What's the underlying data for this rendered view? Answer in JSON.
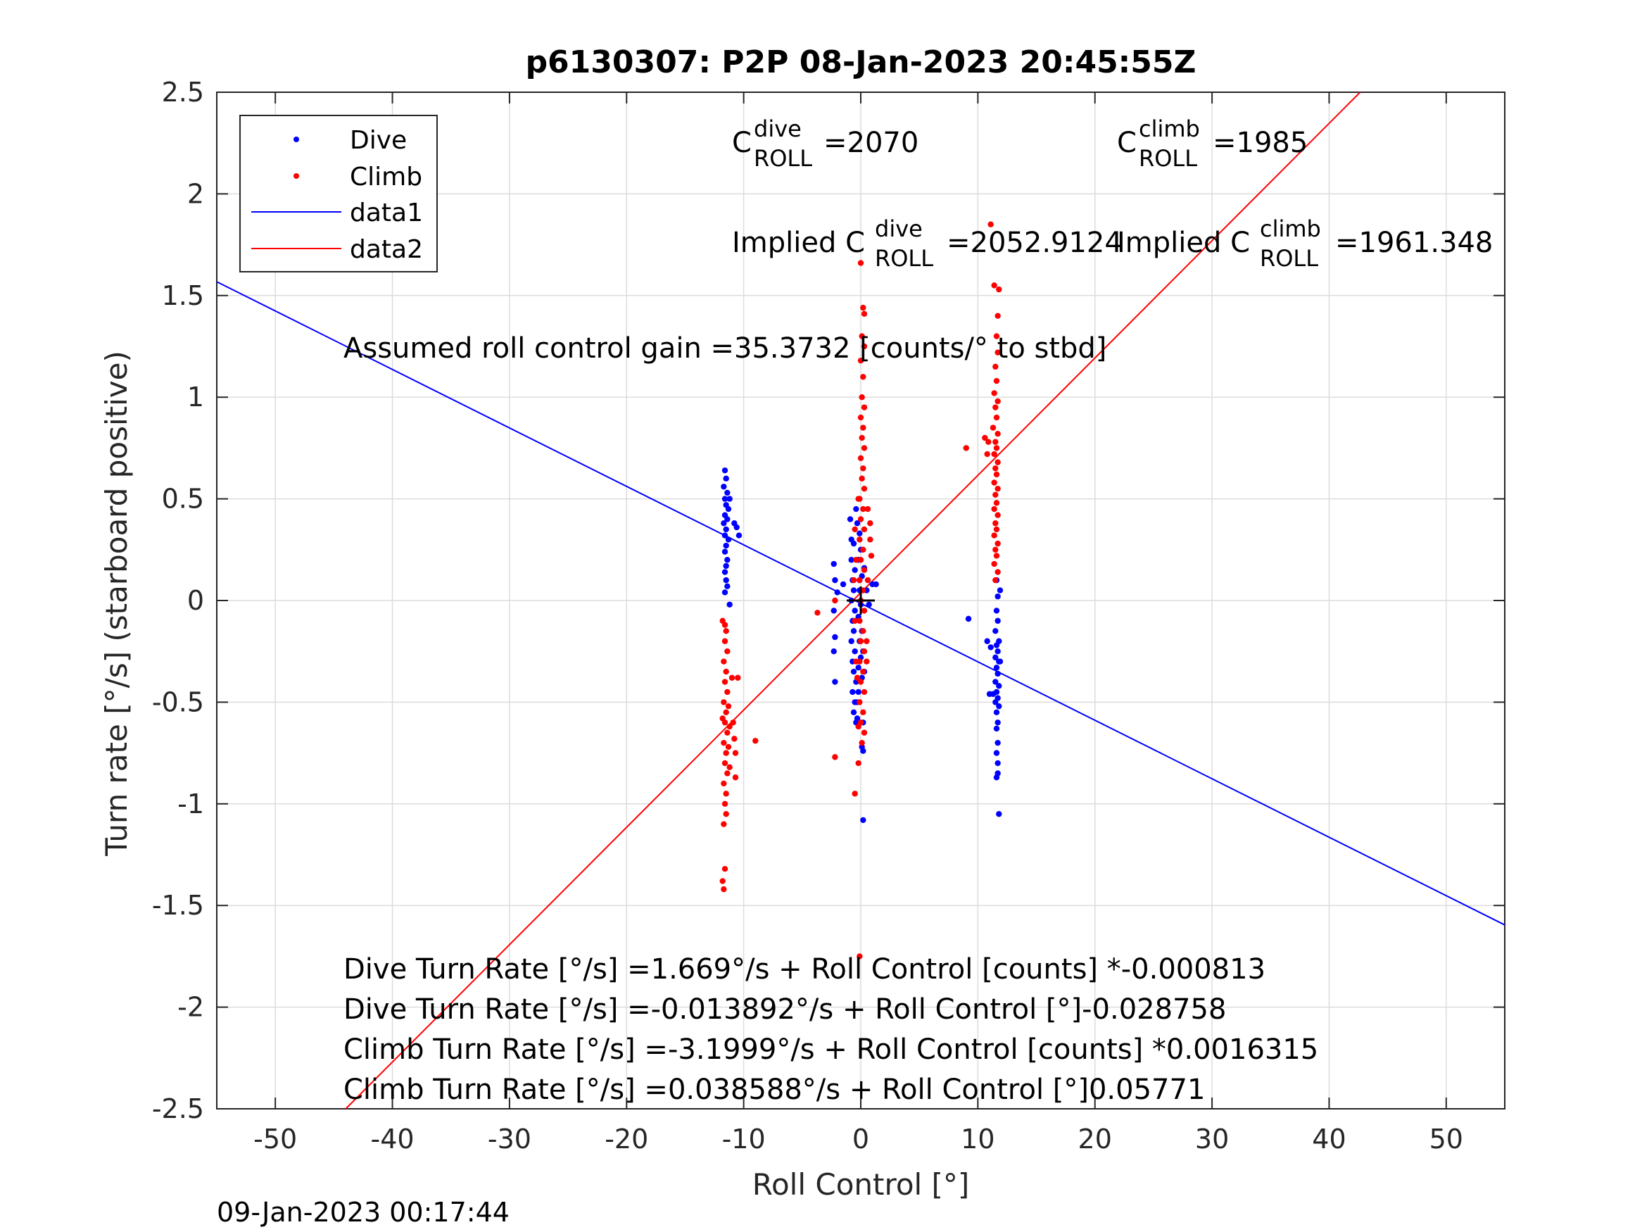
{
  "chart_data": {
    "type": "scatter",
    "title": "p6130307: P2P 08-Jan-2023 20:45:55Z",
    "xlabel": "Roll Control [°]",
    "ylabel": "Turn rate [°/s] (starboard positive)",
    "xlim": [
      -55,
      55
    ],
    "ylim": [
      -2.5,
      2.5
    ],
    "xticks": [
      -50,
      -40,
      -30,
      -20,
      -10,
      0,
      10,
      20,
      30,
      40,
      50
    ],
    "xtick_labels": [
      "-50",
      "-40",
      "-30",
      "-20",
      "-10",
      "0",
      "10",
      "20",
      "30",
      "40",
      "50"
    ],
    "yticks": [
      2.5,
      2,
      1.5,
      1,
      0.5,
      0,
      -0.5,
      -1,
      -1.5,
      -2,
      -2.5
    ],
    "ytick_labels": [
      "2.5",
      "2",
      "1.5",
      "1",
      "0.5",
      "0",
      "-0.5",
      "-1",
      "-1.5",
      "-2",
      "-2.5"
    ],
    "grid": true,
    "legend_position": "top-left",
    "legend": [
      {
        "label": "Dive",
        "kind": "marker",
        "color": "#0000ff"
      },
      {
        "label": "Climb",
        "kind": "marker",
        "color": "#ff0000"
      },
      {
        "label": "data1",
        "kind": "line",
        "color": "#0000ff"
      },
      {
        "label": "data2",
        "kind": "line",
        "color": "#ff0000"
      }
    ],
    "series": [
      {
        "name": "Dive",
        "color": "#0000ff",
        "points": [
          [
            -11.6,
            0.64
          ],
          [
            -11.5,
            0.6
          ],
          [
            -11.7,
            0.56
          ],
          [
            -11.4,
            0.53
          ],
          [
            -11.6,
            0.5
          ],
          [
            -11.5,
            0.47
          ],
          [
            -11.3,
            0.45
          ],
          [
            -11.6,
            0.42
          ],
          [
            -11.4,
            0.4
          ],
          [
            -11.7,
            0.38
          ],
          [
            -11.5,
            0.35
          ],
          [
            -11.6,
            0.32
          ],
          [
            -11.3,
            0.3
          ],
          [
            -11.5,
            0.27
          ],
          [
            -11.6,
            0.24
          ],
          [
            -11.4,
            0.2
          ],
          [
            -11.5,
            0.17
          ],
          [
            -11.6,
            0.14
          ],
          [
            -11.5,
            0.1
          ],
          [
            -11.4,
            0.07
          ],
          [
            -11.6,
            0.04
          ],
          [
            -10.8,
            0.38
          ],
          [
            -10.6,
            0.36
          ],
          [
            -10.4,
            0.32
          ],
          [
            -11.2,
            0.5
          ],
          [
            -11.2,
            -0.02
          ],
          [
            -2.3,
            0.18
          ],
          [
            -2.2,
            0.1
          ],
          [
            -2.3,
            -0.05
          ],
          [
            -2.2,
            -0.18
          ],
          [
            -2.3,
            -0.25
          ],
          [
            -2.2,
            -0.4
          ],
          [
            -2.0,
            0.04
          ],
          [
            -1.5,
            0.08
          ],
          [
            -0.9,
            0.4
          ],
          [
            -0.8,
            0.3
          ],
          [
            -0.6,
            0.28
          ],
          [
            -0.8,
            0.2
          ],
          [
            -0.5,
            0.15
          ],
          [
            -0.7,
            0.1
          ],
          [
            -0.6,
            0.05
          ],
          [
            -0.8,
            0.0
          ],
          [
            -0.5,
            -0.05
          ],
          [
            -0.7,
            -0.1
          ],
          [
            -0.6,
            -0.15
          ],
          [
            -0.8,
            -0.2
          ],
          [
            -0.5,
            -0.25
          ],
          [
            -0.7,
            -0.3
          ],
          [
            -0.6,
            -0.35
          ],
          [
            -0.4,
            -0.4
          ],
          [
            -0.7,
            -0.45
          ],
          [
            -0.5,
            -0.5
          ],
          [
            -0.6,
            -0.55
          ],
          [
            -0.4,
            -0.6
          ],
          [
            -0.3,
            -0.5
          ],
          [
            -0.2,
            -0.45
          ],
          [
            -0.4,
            0.45
          ],
          [
            -0.3,
            0.38
          ],
          [
            -0.1,
            0.33
          ],
          [
            0.0,
            0.25
          ],
          [
            -0.2,
            0.2
          ],
          [
            0.1,
            0.12
          ],
          [
            -0.1,
            0.05
          ],
          [
            0.0,
            -0.02
          ],
          [
            -0.2,
            -0.08
          ],
          [
            0.1,
            -0.15
          ],
          [
            -0.1,
            -0.2
          ],
          [
            0.0,
            -0.28
          ],
          [
            -0.2,
            -0.33
          ],
          [
            0.1,
            -0.38
          ],
          [
            -0.3,
            -0.58
          ],
          [
            0.2,
            -0.6
          ],
          [
            0.1,
            -0.72
          ],
          [
            0.2,
            -0.74
          ],
          [
            0.2,
            -1.08
          ],
          [
            0.3,
            -0.35
          ],
          [
            0.2,
            -0.25
          ],
          [
            -0.1,
            0.1
          ],
          [
            0.5,
            0.05
          ],
          [
            1.0,
            0.08
          ],
          [
            1.3,
            0.08
          ],
          [
            0.7,
            -0.02
          ],
          [
            0.3,
            0.16
          ],
          [
            9.2,
            -0.09
          ],
          [
            11.6,
            -0.05
          ],
          [
            11.7,
            -0.1
          ],
          [
            11.5,
            -0.15
          ],
          [
            11.8,
            -0.2
          ],
          [
            11.6,
            -0.22
          ],
          [
            11.7,
            -0.25
          ],
          [
            11.5,
            -0.28
          ],
          [
            11.8,
            -0.3
          ],
          [
            11.6,
            -0.33
          ],
          [
            11.7,
            -0.36
          ],
          [
            11.5,
            -0.4
          ],
          [
            11.8,
            -0.42
          ],
          [
            11.6,
            -0.45
          ],
          [
            11.7,
            -0.48
          ],
          [
            11.5,
            -0.5
          ],
          [
            11.8,
            -0.52
          ],
          [
            11.6,
            -0.55
          ],
          [
            11.7,
            -0.6
          ],
          [
            11.6,
            -0.63
          ],
          [
            11.7,
            -0.7
          ],
          [
            11.6,
            -0.75
          ],
          [
            11.7,
            -0.8
          ],
          [
            11.7,
            -0.85
          ],
          [
            11.6,
            -0.87
          ],
          [
            11.8,
            -1.05
          ],
          [
            11.6,
            0.1
          ],
          [
            11.7,
            0.02
          ],
          [
            11.9,
            0.05
          ],
          [
            10.8,
            -0.2
          ],
          [
            11.1,
            -0.23
          ],
          [
            11.0,
            -0.46
          ],
          [
            11.3,
            -0.46
          ],
          [
            11.9,
            -0.3
          ]
        ]
      },
      {
        "name": "Climb",
        "color": "#ff0000",
        "points": [
          [
            11.1,
            1.85
          ],
          [
            11.4,
            1.55
          ],
          [
            11.8,
            1.53
          ],
          [
            11.7,
            1.4
          ],
          [
            11.6,
            1.3
          ],
          [
            11.7,
            1.22
          ],
          [
            11.5,
            1.15
          ],
          [
            11.6,
            1.08
          ],
          [
            11.4,
            1.02
          ],
          [
            11.7,
            0.98
          ],
          [
            11.5,
            0.95
          ],
          [
            11.6,
            0.9
          ],
          [
            11.3,
            0.85
          ],
          [
            11.7,
            0.82
          ],
          [
            11.5,
            0.78
          ],
          [
            11.6,
            0.75
          ],
          [
            11.4,
            0.72
          ],
          [
            11.7,
            0.68
          ],
          [
            11.5,
            0.65
          ],
          [
            11.6,
            0.62
          ],
          [
            11.4,
            0.58
          ],
          [
            11.7,
            0.55
          ],
          [
            11.5,
            0.52
          ],
          [
            11.6,
            0.48
          ],
          [
            11.4,
            0.45
          ],
          [
            11.7,
            0.42
          ],
          [
            11.5,
            0.38
          ],
          [
            11.6,
            0.35
          ],
          [
            11.4,
            0.32
          ],
          [
            11.7,
            0.28
          ],
          [
            11.5,
            0.25
          ],
          [
            11.6,
            0.22
          ],
          [
            11.4,
            0.18
          ],
          [
            11.7,
            0.14
          ],
          [
            11.5,
            0.1
          ],
          [
            10.6,
            0.8
          ],
          [
            10.9,
            0.78
          ],
          [
            10.8,
            0.72
          ],
          [
            9.0,
            0.75
          ],
          [
            0.0,
            1.66
          ],
          [
            0.2,
            1.44
          ],
          [
            0.3,
            1.41
          ],
          [
            0.1,
            1.3
          ],
          [
            0.3,
            1.25
          ],
          [
            0.0,
            1.18
          ],
          [
            0.2,
            1.1
          ],
          [
            0.1,
            1.0
          ],
          [
            0.3,
            0.95
          ],
          [
            0.0,
            0.9
          ],
          [
            0.2,
            0.85
          ],
          [
            0.1,
            0.8
          ],
          [
            0.3,
            0.75
          ],
          [
            0.0,
            0.7
          ],
          [
            0.2,
            0.65
          ],
          [
            0.1,
            0.6
          ],
          [
            0.3,
            0.55
          ],
          [
            -0.1,
            0.5
          ],
          [
            0.2,
            0.45
          ],
          [
            0.0,
            0.4
          ],
          [
            0.3,
            0.35
          ],
          [
            -0.1,
            0.3
          ],
          [
            0.2,
            0.25
          ],
          [
            0.0,
            0.2
          ],
          [
            0.3,
            0.15
          ],
          [
            -0.1,
            0.1
          ],
          [
            0.2,
            0.05
          ],
          [
            0.0,
            0.0
          ],
          [
            0.3,
            -0.05
          ],
          [
            -0.1,
            -0.1
          ],
          [
            0.2,
            -0.15
          ],
          [
            0.0,
            -0.2
          ],
          [
            0.3,
            -0.25
          ],
          [
            -0.1,
            -0.3
          ],
          [
            0.2,
            -0.35
          ],
          [
            0.0,
            -0.4
          ],
          [
            0.3,
            -0.45
          ],
          [
            -0.1,
            -0.5
          ],
          [
            0.2,
            -0.55
          ],
          [
            0.0,
            -0.6
          ],
          [
            0.3,
            -0.65
          ],
          [
            0.1,
            -0.7
          ],
          [
            -0.2,
            -0.62
          ],
          [
            0.5,
            -0.2
          ],
          [
            0.6,
            0.1
          ],
          [
            0.8,
            0.3
          ],
          [
            0.8,
            0.38
          ],
          [
            0.9,
            0.22
          ],
          [
            0.6,
            0.45
          ],
          [
            -0.5,
            0.35
          ],
          [
            -0.4,
            0.2
          ],
          [
            -0.6,
            0.1
          ],
          [
            -0.5,
            -0.1
          ],
          [
            -0.4,
            -0.3
          ],
          [
            0.5,
            -0.3
          ],
          [
            -0.2,
            -0.8
          ],
          [
            -0.5,
            -0.95
          ],
          [
            -0.1,
            -1.75
          ],
          [
            -2.2,
            -0.77
          ],
          [
            -3.7,
            -0.06
          ],
          [
            -2.2,
            0.0
          ],
          [
            -0.3,
            -0.38
          ],
          [
            -0.2,
            0.5
          ],
          [
            -11.6,
            -0.12
          ],
          [
            -11.5,
            -0.15
          ],
          [
            -11.6,
            -0.2
          ],
          [
            -11.4,
            -0.25
          ],
          [
            -11.7,
            -0.3
          ],
          [
            -11.5,
            -0.35
          ],
          [
            -11.6,
            -0.4
          ],
          [
            -11.4,
            -0.45
          ],
          [
            -11.7,
            -0.5
          ],
          [
            -11.5,
            -0.55
          ],
          [
            -11.6,
            -0.6
          ],
          [
            -11.4,
            -0.65
          ],
          [
            -11.7,
            -0.7
          ],
          [
            -11.5,
            -0.75
          ],
          [
            -11.6,
            -0.8
          ],
          [
            -11.4,
            -0.85
          ],
          [
            -11.7,
            -0.9
          ],
          [
            -11.5,
            -0.95
          ],
          [
            -11.6,
            -1.0
          ],
          [
            -11.5,
            -1.05
          ],
          [
            -11.7,
            -1.1
          ],
          [
            -11.6,
            -1.32
          ],
          [
            -11.8,
            -1.38
          ],
          [
            -11.7,
            -1.42
          ],
          [
            -11.8,
            -0.1
          ],
          [
            -11.3,
            -0.52
          ],
          [
            -11.2,
            -0.62
          ],
          [
            -11.3,
            -0.72
          ],
          [
            -11.2,
            -0.82
          ],
          [
            -11.8,
            -0.58
          ],
          [
            -11.0,
            -0.38
          ],
          [
            -10.9,
            -0.6
          ],
          [
            -10.8,
            -0.68
          ],
          [
            -10.7,
            -0.75
          ],
          [
            -10.7,
            -0.87
          ],
          [
            -10.5,
            -0.38
          ],
          [
            -9.0,
            -0.69
          ]
        ]
      },
      {
        "name": "data1",
        "color": "#0000ff",
        "kind": "line",
        "intercept": -0.013892,
        "slope": -0.028758
      },
      {
        "name": "data2",
        "color": "#ff0000",
        "kind": "line",
        "intercept": 0.038588,
        "slope": 0.05771
      }
    ],
    "center_marker": {
      "x": 0,
      "y": 0,
      "symbol": "+",
      "color": "#000000"
    },
    "annotations": {
      "cdive_prefix": "C",
      "cdive_sup": "dive",
      "cdive_sub": "ROLL",
      "cdive_value": "=2070",
      "cclimb_prefix": "C",
      "cclimb_sup": "climb",
      "cclimb_sub": "ROLL",
      "cclimb_value": "=1985",
      "implied_dive_prefix": "Implied C",
      "implied_dive_sup": "dive",
      "implied_dive_sub": "ROLL",
      "implied_dive_value": "=2052.9124",
      "implied_climb_prefix": "Implied C",
      "implied_climb_sup": "climb",
      "implied_climb_sub": "ROLL",
      "implied_climb_value": "=1961.348",
      "gain": "Assumed roll control gain =35.3732 [counts/° to stbd]",
      "eq1": "Dive Turn Rate [°/s] =1.669°/s + Roll Control [counts] *-0.000813",
      "eq2": "Dive Turn Rate [°/s] =-0.013892°/s + Roll Control [°]-0.028758",
      "eq3": "Climb Turn Rate [°/s] =-3.1999°/s + Roll Control [counts] *0.0016315",
      "eq4": "Climb Turn Rate [°/s] =0.038588°/s + Roll Control [°]0.05771"
    },
    "footer": "09-Jan-2023 00:17:44"
  }
}
